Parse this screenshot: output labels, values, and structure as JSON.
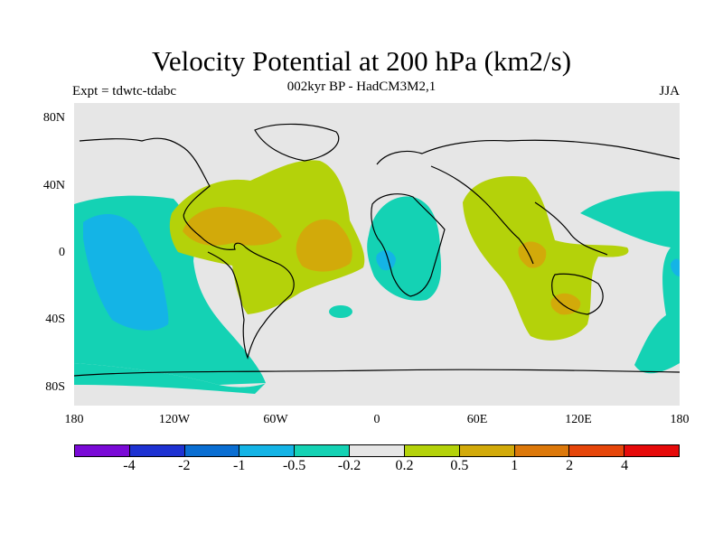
{
  "title": "Velocity Potential at 200 hPa (km2/s)",
  "subtitle": "002kyr BP - HadCM3M2,1",
  "experiment_label": "Expt = tdwtc-tdabc",
  "season_label": "JJA",
  "map": {
    "projection": "equirectangular",
    "lon_range": [
      -180,
      180
    ],
    "lat_range": [
      -90,
      90
    ],
    "background_color": "#e6e6e6",
    "x_ticks": [
      "180",
      "120W",
      "60W",
      "0",
      "60E",
      "120E",
      "180"
    ],
    "y_ticks": [
      "80N",
      "40N",
      "0",
      "40S",
      "80S"
    ]
  },
  "colorbar": {
    "colors": [
      "#7a0ad6",
      "#1e32d2",
      "#0a6ed2",
      "#14b4e6",
      "#14d2b4",
      "#e6e6e6",
      "#b4d20a",
      "#d2aa0a",
      "#dc780a",
      "#e6460a",
      "#e60a0a"
    ],
    "labels": [
      "-4",
      "-2",
      "-1",
      "-0.5",
      "-0.2",
      "0.2",
      "0.5",
      "1",
      "2",
      "4"
    ]
  }
}
